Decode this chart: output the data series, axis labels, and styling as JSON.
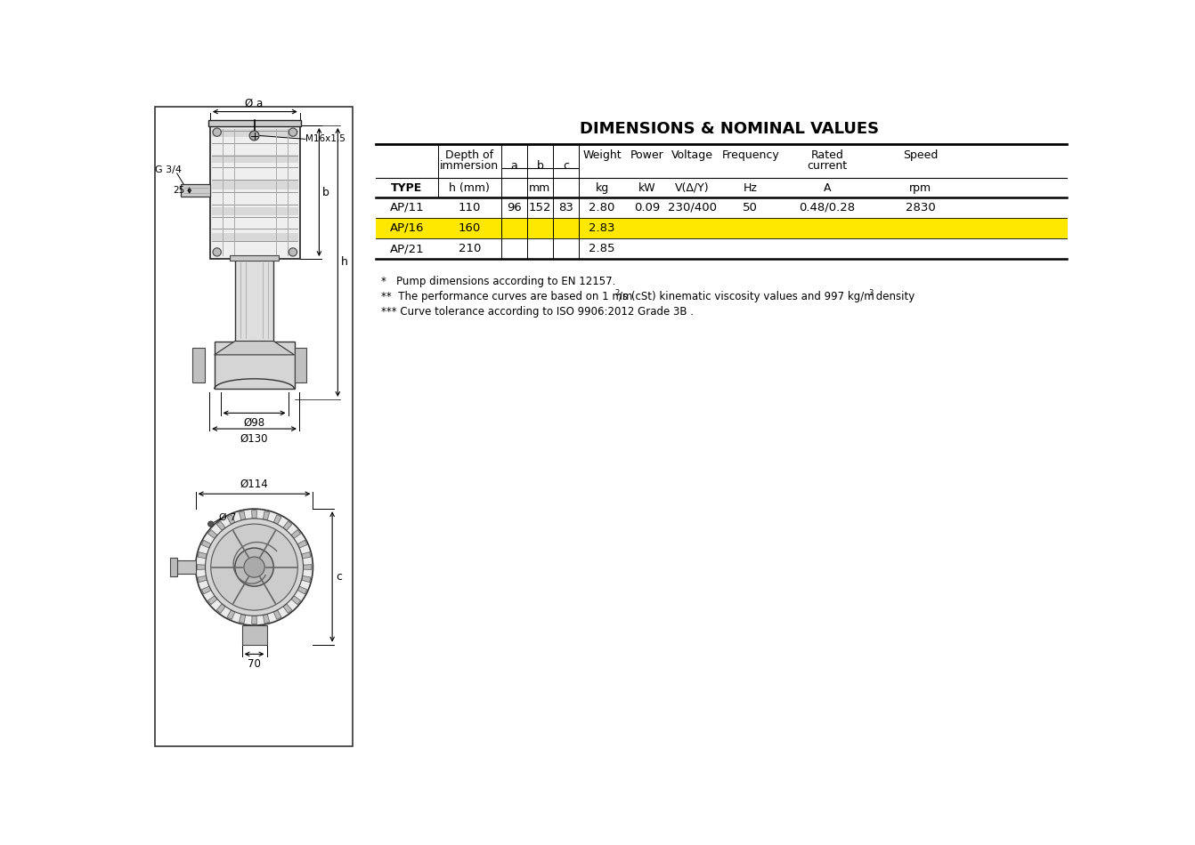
{
  "title": "DIMENSIONS & NOMINAL VALUES",
  "highlight_color": "#FFE800",
  "background_color": "#FFFFFF",
  "text_color": "#000000",
  "rows": [
    {
      "type": "AP/11",
      "h": "110",
      "a": "96",
      "b": "152",
      "c": "83",
      "weight": "2.80",
      "power": "0.09",
      "voltage": "230/400",
      "freq": "50",
      "rated": "0.48/0.28",
      "speed": "2830",
      "highlight": false
    },
    {
      "type": "AP/16",
      "h": "160",
      "a": "",
      "b": "",
      "c": "",
      "weight": "2.83",
      "power": "",
      "voltage": "",
      "freq": "",
      "rated": "",
      "speed": "",
      "highlight": true
    },
    {
      "type": "AP/21",
      "h": "210",
      "a": "",
      "b": "",
      "c": "",
      "weight": "2.85",
      "power": "",
      "voltage": "",
      "freq": "",
      "rated": "",
      "speed": "",
      "highlight": false
    }
  ]
}
